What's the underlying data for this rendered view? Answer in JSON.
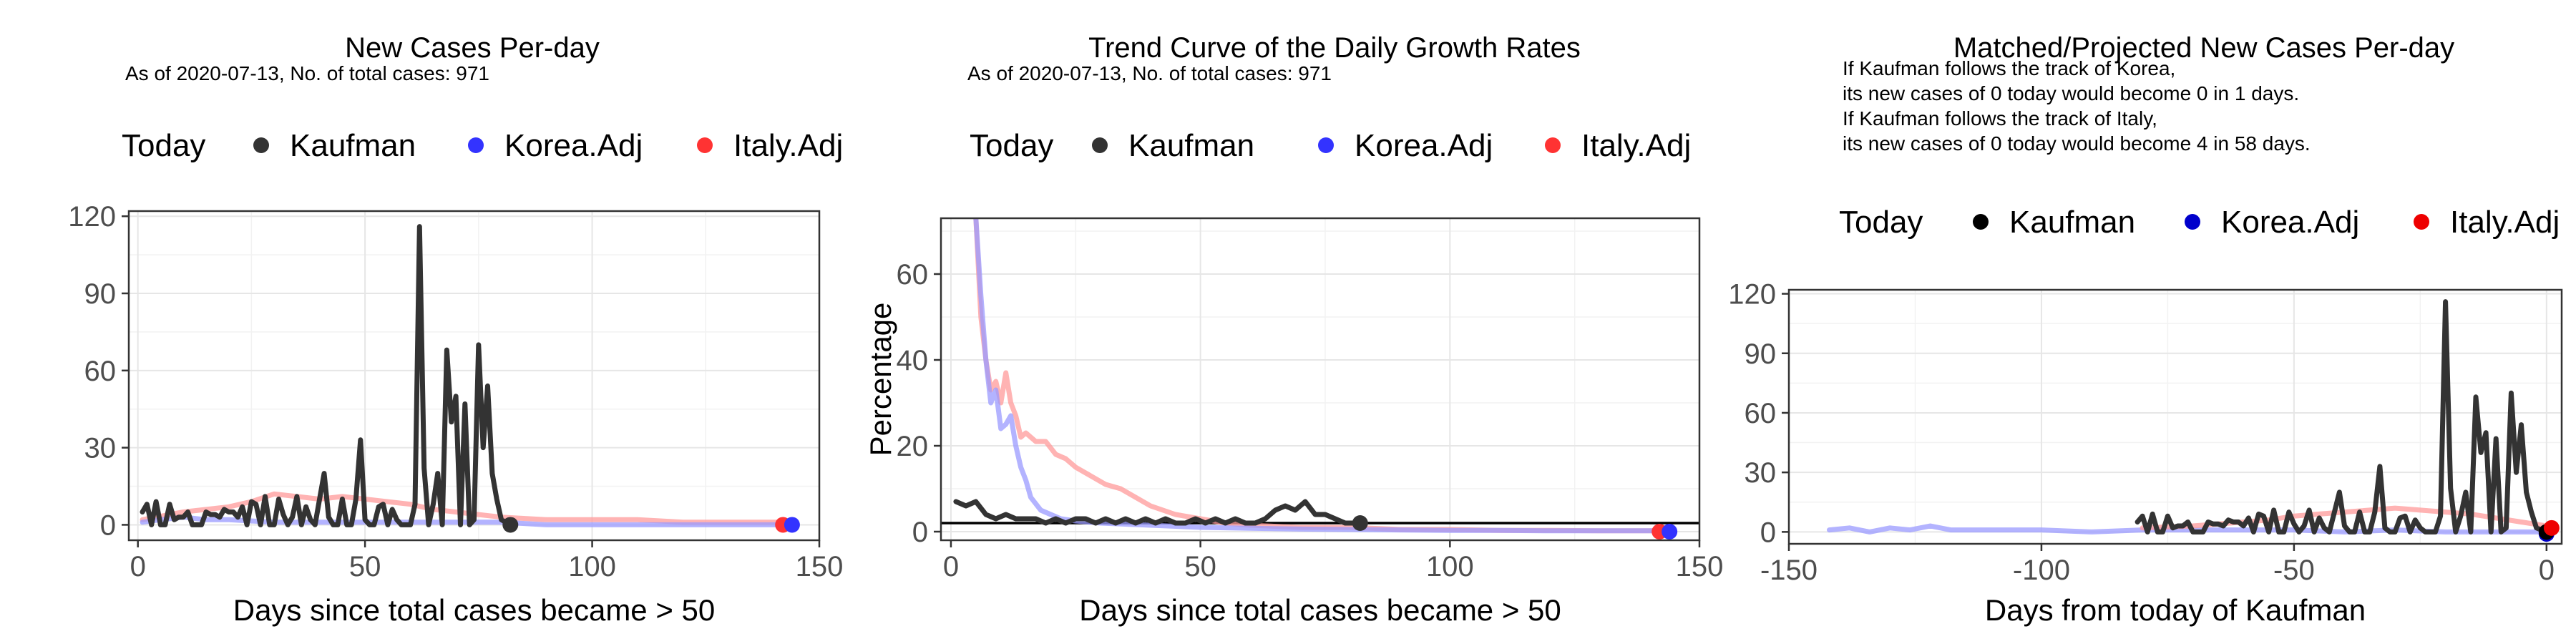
{
  "chart_data": [
    {
      "type": "line",
      "title": "New Cases Per-day",
      "subtitle": "As of 2020-07-13, No. of total cases: 971",
      "legend": {
        "title": "Today",
        "position": "top",
        "entries": [
          {
            "name": "Kaufman",
            "color": "#333333"
          },
          {
            "name": "Korea.Adj",
            "color": "#3333ff"
          },
          {
            "name": "Italy.Adj",
            "color": "#ff3333"
          }
        ]
      },
      "xlabel": "Days since total cases became > 50",
      "ylabel": "",
      "xlim": [
        -2,
        150
      ],
      "ylim": [
        -6,
        122
      ],
      "xticks": [
        0,
        50,
        100,
        150
      ],
      "xtick_labels": [
        "0",
        "50",
        "100",
        "150"
      ],
      "yticks": [
        0,
        30,
        60,
        90,
        120
      ],
      "ytick_labels": [
        "0",
        "30",
        "60",
        "90",
        "120"
      ],
      "grid": true,
      "series": [
        {
          "name": "Italy.Adj",
          "color": "#ff9999",
          "x": [
            1,
            10,
            20,
            25,
            30,
            35,
            40,
            45,
            50,
            55,
            60,
            65,
            70,
            75,
            80,
            90,
            100,
            110,
            120,
            130,
            142
          ],
          "y": [
            2,
            5,
            7,
            9,
            12,
            11,
            10,
            11,
            10,
            9,
            8,
            6,
            5,
            4,
            3,
            2,
            2,
            2,
            1,
            1,
            1
          ]
        },
        {
          "name": "Korea.Adj",
          "color": "#9999ff",
          "x": [
            1,
            5,
            10,
            15,
            20,
            30,
            40,
            50,
            60,
            70,
            80,
            90,
            100,
            110,
            120,
            130,
            144
          ],
          "y": [
            1,
            2,
            3,
            2,
            2,
            1,
            1,
            1,
            1,
            1,
            1,
            0,
            0,
            0,
            0,
            0,
            0
          ]
        },
        {
          "name": "Kaufman",
          "color": "#333333",
          "x": [
            1,
            2,
            3,
            4,
            5,
            6,
            7,
            8,
            9,
            10,
            11,
            12,
            13,
            14,
            15,
            16,
            17,
            18,
            19,
            20,
            21,
            22,
            23,
            24,
            25,
            26,
            27,
            28,
            29,
            30,
            31,
            32,
            33,
            34,
            35,
            36,
            37,
            38,
            39,
            40,
            41,
            42,
            43,
            44,
            45,
            46,
            47,
            48,
            49,
            50,
            51,
            52,
            53,
            54,
            55,
            56,
            57,
            58,
            59,
            60,
            61,
            62,
            63,
            64,
            65,
            66,
            67,
            68,
            69,
            70,
            71,
            72,
            73,
            74,
            75,
            76,
            77,
            78,
            79,
            80,
            81,
            82
          ],
          "y": [
            5,
            8,
            0,
            9,
            0,
            0,
            8,
            2,
            3,
            3,
            5,
            0,
            0,
            0,
            5,
            4,
            4,
            3,
            6,
            5,
            5,
            3,
            7,
            0,
            9,
            8,
            0,
            11,
            0,
            0,
            10,
            4,
            0,
            3,
            11,
            0,
            7,
            2,
            0,
            10,
            20,
            3,
            0,
            0,
            10,
            0,
            0,
            10,
            33,
            2,
            0,
            0,
            7,
            8,
            0,
            6,
            2,
            0,
            0,
            0,
            8,
            116,
            22,
            0,
            8,
            20,
            0,
            68,
            40,
            50,
            0,
            47,
            0,
            2,
            70,
            30,
            54,
            20,
            10,
            2,
            1,
            0
          ]
        }
      ],
      "today_points": [
        {
          "series": "Kaufman",
          "x": 82,
          "y": 0,
          "color": "#333333"
        },
        {
          "series": "Italy.Adj",
          "x": 142,
          "y": 0,
          "color": "#ff3333"
        },
        {
          "series": "Korea.Adj",
          "x": 144,
          "y": 0,
          "color": "#3333ff"
        }
      ]
    },
    {
      "type": "line",
      "title": "Trend Curve of the Daily Growth Rates",
      "subtitle": "As of 2020-07-13, No. of total cases: 971",
      "legend": {
        "title": "Today",
        "position": "top",
        "entries": [
          {
            "name": "Kaufman",
            "color": "#333333"
          },
          {
            "name": "Korea.Adj",
            "color": "#3333ff"
          },
          {
            "name": "Italy.Adj",
            "color": "#ff3333"
          }
        ]
      },
      "xlabel": "Days since total cases became > 50",
      "ylabel": "Percentage",
      "xlim": [
        -2,
        150
      ],
      "ylim": [
        -2,
        73
      ],
      "xticks": [
        0,
        50,
        100,
        150
      ],
      "xtick_labels": [
        "0",
        "50",
        "100",
        "150"
      ],
      "yticks": [
        0,
        20,
        40,
        60
      ],
      "ytick_labels": [
        "0",
        "20",
        "40",
        "60"
      ],
      "grid": true,
      "hline": 2,
      "series": [
        {
          "name": "Italy.Adj",
          "color": "#ff9999",
          "x": [
            5,
            6,
            7,
            8,
            9,
            10,
            11,
            12,
            13,
            14,
            15,
            17,
            19,
            21,
            23,
            25,
            28,
            31,
            34,
            37,
            40,
            45,
            50,
            55,
            60,
            70,
            80,
            90,
            100,
            110,
            120,
            130,
            142
          ],
          "y": [
            73,
            50,
            40,
            33,
            35,
            30,
            37,
            30,
            27,
            22,
            23,
            21,
            21,
            18,
            17,
            15,
            13,
            11,
            10,
            8,
            6,
            4,
            3,
            2,
            1.5,
            1,
            1,
            0.5,
            0.5,
            0.3,
            0.3,
            0.2,
            0.2
          ]
        },
        {
          "name": "Korea.Adj",
          "color": "#9999ff",
          "x": [
            5,
            6,
            7,
            8,
            9,
            10,
            11,
            12,
            13,
            14,
            15,
            16,
            18,
            20,
            22,
            25,
            30,
            40,
            50,
            60,
            70,
            80,
            90,
            100,
            110,
            120,
            130,
            144
          ],
          "y": [
            73,
            55,
            40,
            30,
            33,
            24,
            25,
            27,
            20,
            15,
            12,
            8,
            5,
            4,
            3,
            2.5,
            2,
            1.5,
            1,
            0.8,
            0.6,
            0.5,
            0.4,
            0.3,
            0.3,
            0.2,
            0.2,
            0.2
          ]
        },
        {
          "name": "Kaufman",
          "color": "#333333",
          "x": [
            1,
            3,
            5,
            7,
            9,
            11,
            13,
            15,
            17,
            19,
            21,
            23,
            25,
            27,
            29,
            31,
            33,
            35,
            37,
            39,
            41,
            43,
            45,
            47,
            49,
            51,
            53,
            55,
            57,
            59,
            61,
            63,
            65,
            67,
            69,
            71,
            73,
            75,
            77,
            79,
            82
          ],
          "y": [
            7,
            6,
            7,
            4,
            3,
            4,
            3,
            3,
            3,
            2,
            3,
            2,
            3,
            3,
            2,
            3,
            2,
            3,
            2,
            3,
            2,
            3,
            2,
            2,
            3,
            2,
            3,
            2,
            3,
            2,
            2,
            3,
            5,
            6,
            5,
            7,
            4,
            4,
            3,
            2,
            2
          ]
        }
      ],
      "today_points": [
        {
          "series": "Kaufman",
          "x": 82,
          "y": 2,
          "color": "#333333"
        },
        {
          "series": "Italy.Adj",
          "x": 142,
          "y": 0,
          "color": "#ff3333"
        },
        {
          "series": "Korea.Adj",
          "x": 144,
          "y": 0,
          "color": "#3333ff"
        }
      ]
    },
    {
      "type": "line",
      "title": "Matched/Projected New Cases Per-day",
      "subtitle_lines": [
        "If Kaufman follows the track of Korea,",
        "its new cases of 0 today would become 0 in 1 days.",
        "If Kaufman follows the track of Italy,",
        "its new cases of 0 today would become 4 in 58 days."
      ],
      "legend": {
        "title": "Today",
        "position": "top",
        "entries": [
          {
            "name": "Kaufman",
            "color": "#000000"
          },
          {
            "name": "Korea.Adj",
            "color": "#0000cc"
          },
          {
            "name": "Italy.Adj",
            "color": "#ee0000"
          }
        ]
      },
      "xlabel": "Days from today of Kaufman",
      "ylabel": "",
      "xlim": [
        -150,
        3
      ],
      "ylim": [
        -6,
        122
      ],
      "xticks": [
        -150,
        -100,
        -50,
        0
      ],
      "xtick_labels": [
        "-150",
        "-100",
        "-50",
        "0"
      ],
      "yticks": [
        0,
        30,
        60,
        90,
        120
      ],
      "ytick_labels": [
        "0",
        "30",
        "60",
        "90",
        "120"
      ],
      "grid": true,
      "series": [
        {
          "name": "Korea.Adj",
          "color": "#9999ff",
          "x": [
            -142,
            -138,
            -134,
            -130,
            -126,
            -122,
            -118,
            -110,
            -100,
            -90,
            -80,
            -70,
            -60,
            -50,
            -40,
            -30,
            -20,
            -10,
            0
          ],
          "y": [
            1,
            2,
            0,
            2,
            1,
            3,
            1,
            1,
            1,
            0,
            1,
            1,
            1,
            1,
            0,
            1,
            0,
            0,
            0
          ]
        },
        {
          "name": "Italy.Adj",
          "color": "#ff9999",
          "x": [
            -80,
            -70,
            -60,
            -55,
            -50,
            -45,
            -40,
            -35,
            -30,
            -25,
            -20,
            -15,
            -10,
            -5,
            0,
            2
          ],
          "y": [
            2,
            3,
            5,
            6,
            8,
            9,
            10,
            11,
            12,
            11,
            10,
            9,
            7,
            5,
            3,
            3
          ]
        },
        {
          "name": "Kaufman",
          "color": "#333333",
          "x": [
            -81,
            -80,
            -79,
            -78,
            -77,
            -76,
            -75,
            -74,
            -73,
            -72,
            -71,
            -70,
            -69,
            -68,
            -67,
            -66,
            -65,
            -64,
            -63,
            -62,
            -61,
            -60,
            -59,
            -58,
            -57,
            -56,
            -55,
            -54,
            -53,
            -52,
            -51,
            -50,
            -49,
            -48,
            -47,
            -46,
            -45,
            -44,
            -43,
            -42,
            -41,
            -40,
            -39,
            -38,
            -37,
            -36,
            -35,
            -34,
            -33,
            -32,
            -31,
            -30,
            -29,
            -28,
            -27,
            -26,
            -25,
            -24,
            -23,
            -22,
            -21,
            -20,
            -19,
            -18,
            -17,
            -16,
            -15,
            -14,
            -13,
            -12,
            -11,
            -10,
            -9,
            -8,
            -7,
            -6,
            -5,
            -4,
            -3,
            -2,
            -1,
            0
          ],
          "y": [
            5,
            8,
            0,
            9,
            0,
            0,
            8,
            2,
            3,
            3,
            5,
            0,
            0,
            0,
            5,
            4,
            4,
            3,
            6,
            5,
            5,
            3,
            7,
            0,
            9,
            8,
            0,
            11,
            0,
            0,
            10,
            4,
            0,
            3,
            11,
            0,
            7,
            2,
            0,
            10,
            20,
            3,
            0,
            0,
            10,
            0,
            0,
            10,
            33,
            2,
            0,
            0,
            7,
            8,
            0,
            6,
            2,
            0,
            0,
            0,
            8,
            116,
            22,
            0,
            8,
            20,
            0,
            68,
            40,
            50,
            0,
            47,
            0,
            2,
            70,
            30,
            54,
            20,
            10,
            2,
            1,
            0
          ]
        }
      ],
      "today_points": [
        {
          "series": "Korea.Adj",
          "x": 0,
          "y": -1,
          "color": "#0000cc"
        },
        {
          "series": "Kaufman",
          "x": 0,
          "y": 0,
          "color": "#000000"
        },
        {
          "series": "Italy.Adj",
          "x": 1,
          "y": 2,
          "color": "#ee0000"
        }
      ]
    }
  ]
}
